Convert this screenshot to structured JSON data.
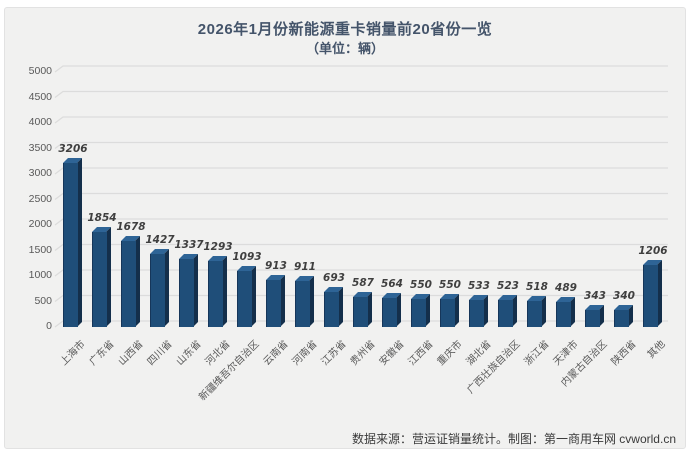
{
  "chart_data": {
    "type": "bar",
    "style": "3d-column",
    "title": "2026年1月份新能源重卡销量前20省份一览",
    "subtitle": "（单位：辆）",
    "categories": [
      "上海市",
      "广东省",
      "山西省",
      "四川省",
      "山东省",
      "河北省",
      "新疆维吾尔自治区",
      "云南省",
      "河南省",
      "江苏省",
      "贵州省",
      "安徽省",
      "江西省",
      "重庆市",
      "湖北省",
      "广西壮族自治区",
      "浙江省",
      "天津市",
      "内蒙古自治区",
      "陕西省",
      "其他"
    ],
    "values": [
      3206,
      1854,
      1678,
      1427,
      1337,
      1293,
      1093,
      913,
      911,
      693,
      587,
      564,
      550,
      550,
      533,
      523,
      518,
      489,
      343,
      340,
      1206
    ],
    "xlabel": "",
    "ylabel": "",
    "ylim": [
      0,
      5000
    ],
    "ytick_step": 500,
    "grid": true,
    "legend": "none",
    "data_labels": true,
    "colors": {
      "bar_front": "#1f4e79",
      "bar_side": "#142f4b",
      "bar_top": "#2e6496",
      "gridline": "#dcdcdc",
      "axis_text": "#595959",
      "data_label_text": "#3f3f3f",
      "title_text": "#44546a",
      "panel_bg": "#f1f1f0"
    }
  },
  "footer": {
    "source_text": "数据来源：营运证销量统计。制图：第一商用车网 cvworld.cn"
  }
}
